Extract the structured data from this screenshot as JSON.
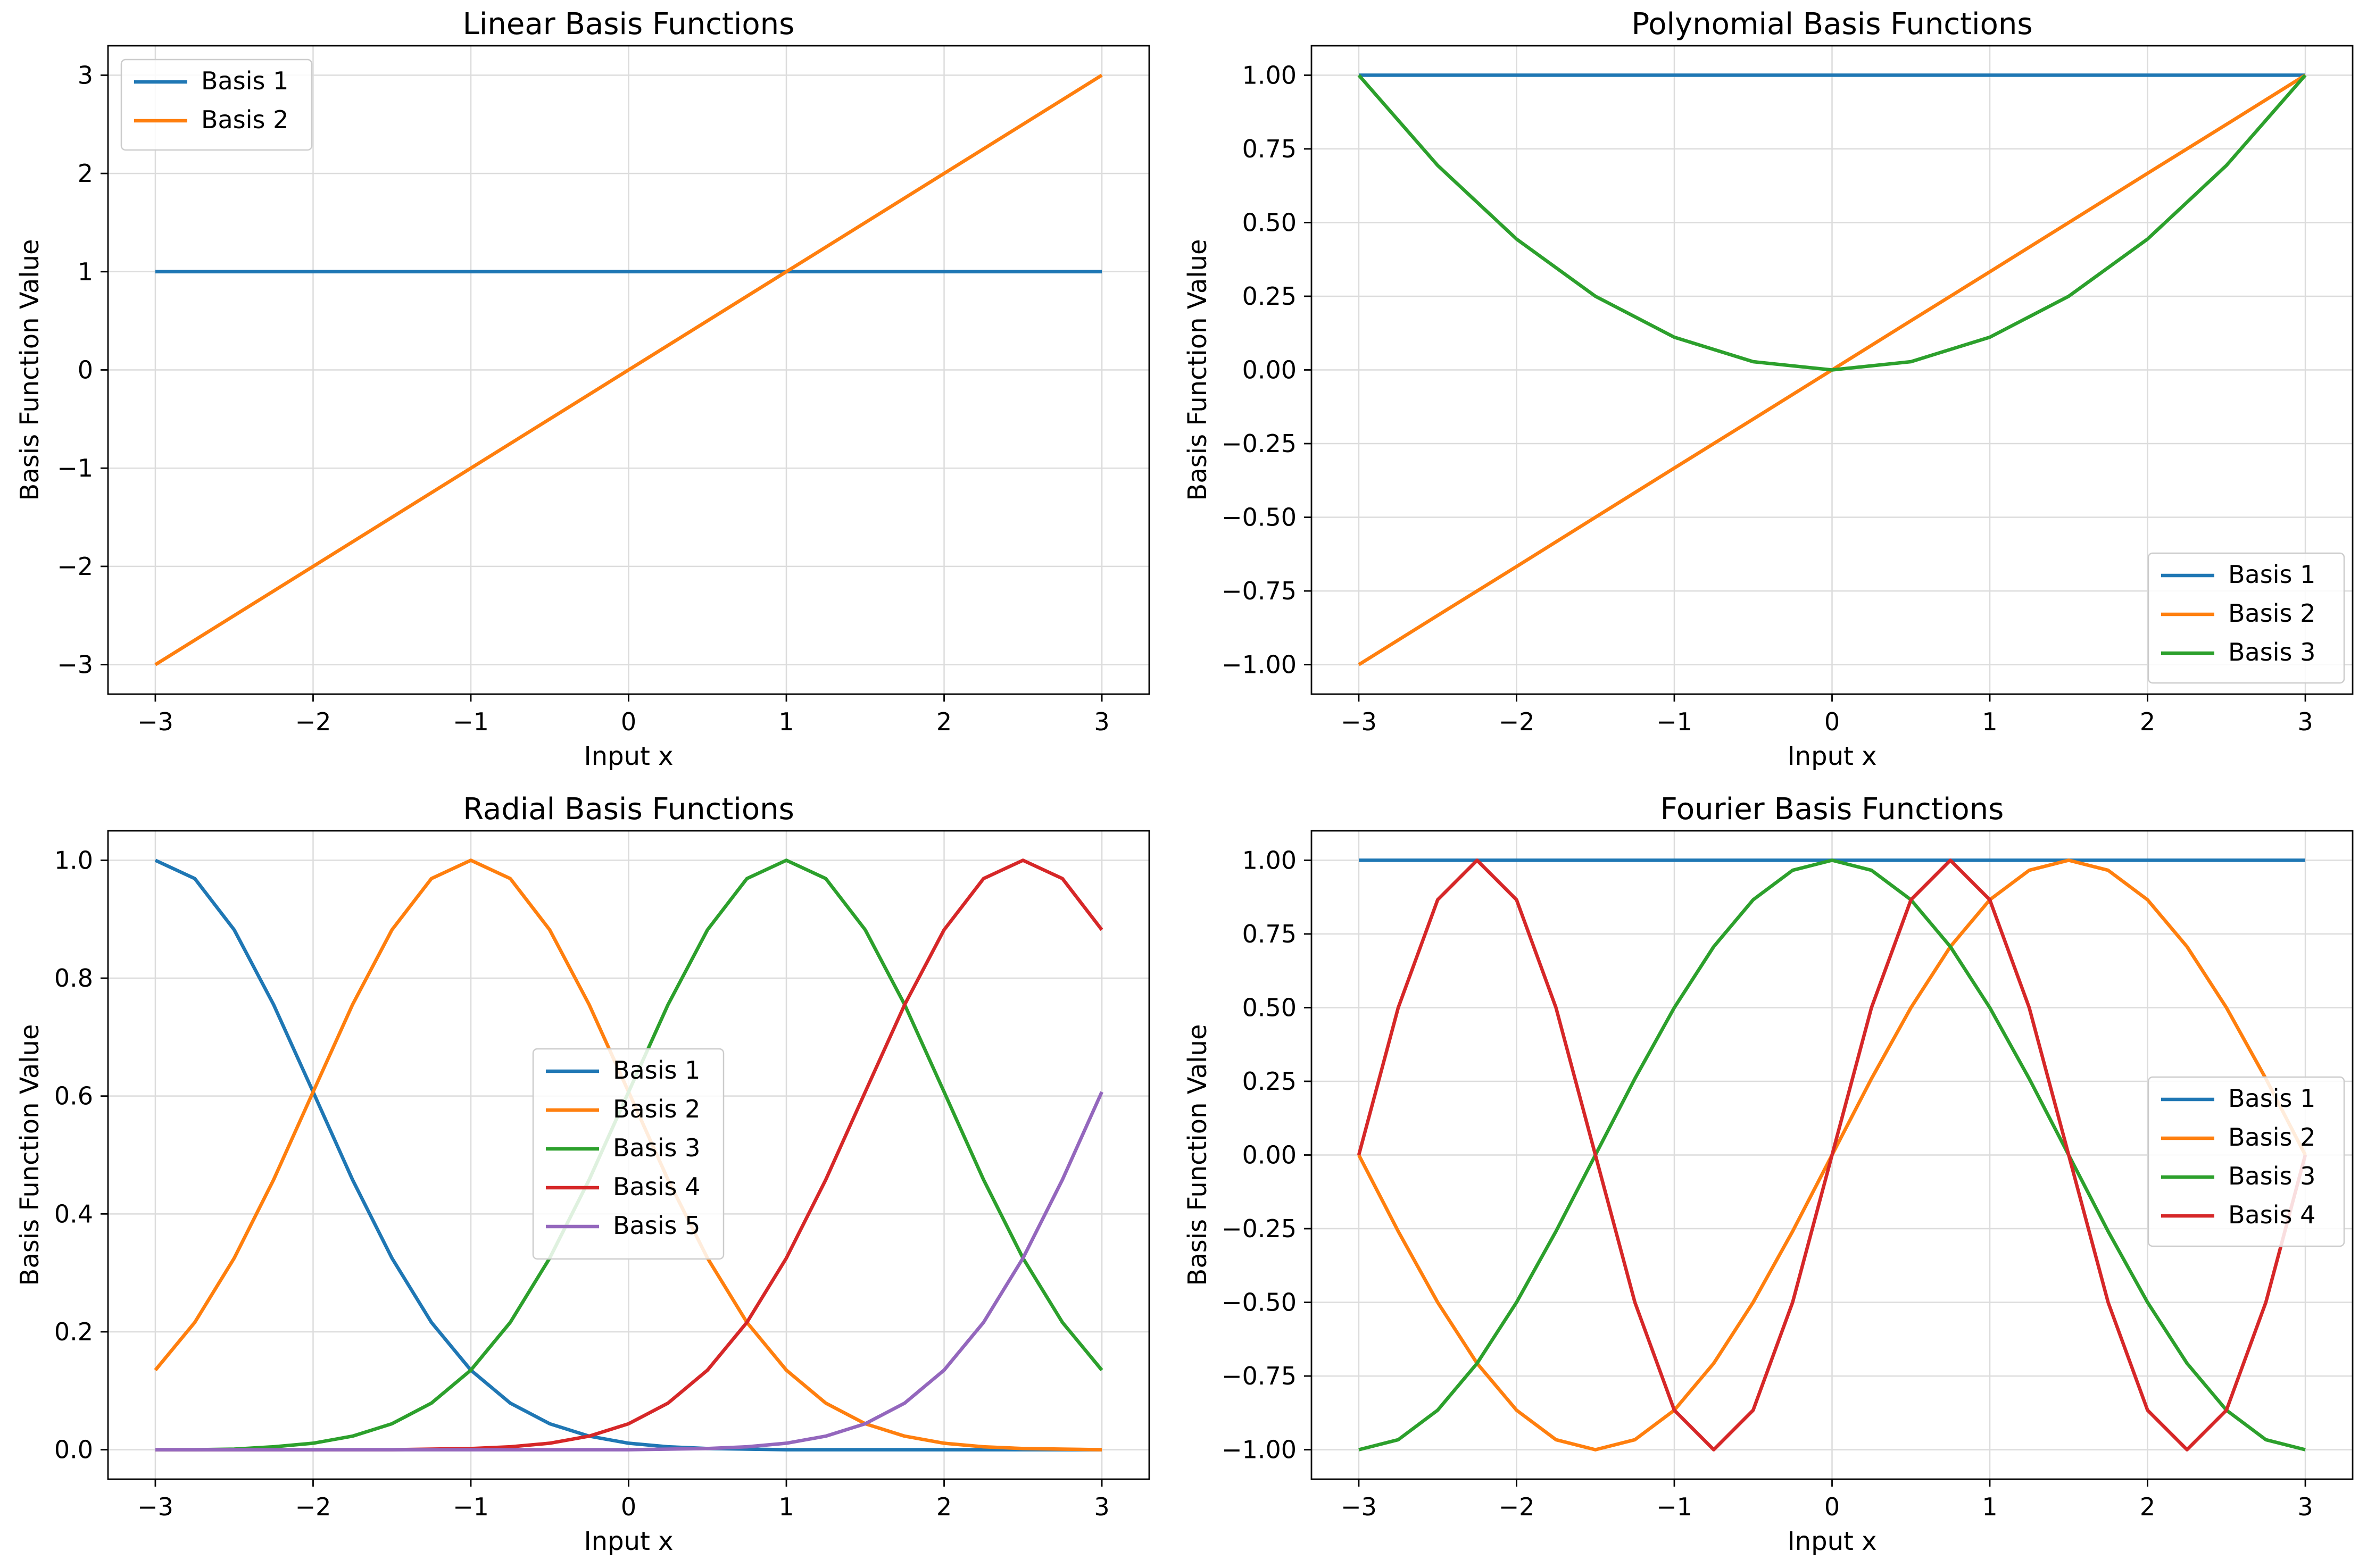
{
  "chart_data": [
    {
      "type": "line",
      "title": "Linear Basis Functions",
      "xlabel": "Input x",
      "ylabel": "Basis Function Value",
      "xlim": [
        -3.3,
        3.3
      ],
      "ylim": [
        -3.3,
        3.3
      ],
      "xticks": [
        -3,
        -2,
        -1,
        0,
        1,
        2,
        3
      ],
      "xtick_labels": [
        "−3",
        "−2",
        "−1",
        "0",
        "1",
        "2",
        "3"
      ],
      "yticks": [
        -3,
        -2,
        -1,
        0,
        1,
        2,
        3
      ],
      "ytick_labels": [
        "−3",
        "−2",
        "−1",
        "0",
        "1",
        "2",
        "3"
      ],
      "grid": true,
      "legend_position": "top-left",
      "x": [
        -3,
        3
      ],
      "series": [
        {
          "name": "Basis 1",
          "color": "#1f77b4",
          "values": [
            1,
            1
          ]
        },
        {
          "name": "Basis 2",
          "color": "#ff7f0e",
          "values": [
            -3,
            3
          ]
        }
      ]
    },
    {
      "type": "line",
      "title": "Polynomial Basis Functions",
      "xlabel": "Input x",
      "ylabel": "Basis Function Value",
      "xlim": [
        -3.3,
        3.3
      ],
      "ylim": [
        -1.1,
        1.1
      ],
      "xticks": [
        -3,
        -2,
        -1,
        0,
        1,
        2,
        3
      ],
      "xtick_labels": [
        "−3",
        "−2",
        "−1",
        "0",
        "1",
        "2",
        "3"
      ],
      "yticks": [
        -1,
        -0.75,
        -0.5,
        -0.25,
        0,
        0.25,
        0.5,
        0.75,
        1
      ],
      "ytick_labels": [
        "−1.00",
        "−0.75",
        "−0.50",
        "−0.25",
        "0.00",
        "0.25",
        "0.50",
        "0.75",
        "1.00"
      ],
      "grid": true,
      "legend_position": "bottom-right",
      "x": [
        -3,
        -2.5,
        -2,
        -1.5,
        -1,
        -0.5,
        0,
        0.5,
        1,
        1.5,
        2,
        2.5,
        3
      ],
      "series": [
        {
          "name": "Basis 1",
          "color": "#1f77b4",
          "values": [
            1,
            1,
            1,
            1,
            1,
            1,
            1,
            1,
            1,
            1,
            1,
            1,
            1
          ]
        },
        {
          "name": "Basis 2",
          "color": "#ff7f0e",
          "values": [
            -1,
            -0.833,
            -0.667,
            -0.5,
            -0.333,
            -0.167,
            0,
            0.167,
            0.333,
            0.5,
            0.667,
            0.833,
            1
          ]
        },
        {
          "name": "Basis 3",
          "color": "#2ca02c",
          "values": [
            1,
            0.694,
            0.444,
            0.25,
            0.111,
            0.028,
            0,
            0.028,
            0.111,
            0.25,
            0.444,
            0.694,
            1
          ]
        }
      ]
    },
    {
      "type": "line",
      "title": "Radial Basis Functions",
      "xlabel": "Input x",
      "ylabel": "Basis Function Value",
      "xlim": [
        -3.3,
        3.3
      ],
      "ylim": [
        -0.05,
        1.05
      ],
      "xticks": [
        -3,
        -2,
        -1,
        0,
        1,
        2,
        3
      ],
      "xtick_labels": [
        "−3",
        "−2",
        "−1",
        "0",
        "1",
        "2",
        "3"
      ],
      "yticks": [
        0,
        0.2,
        0.4,
        0.6,
        0.8,
        1
      ],
      "ytick_labels": [
        "0.0",
        "0.2",
        "0.4",
        "0.6",
        "0.8",
        "1.0"
      ],
      "grid": true,
      "legend_position": "center",
      "x": [
        -3,
        -2.75,
        -2.5,
        -2.25,
        -2,
        -1.75,
        -1.5,
        -1.25,
        -1,
        -0.75,
        -0.5,
        -0.25,
        0,
        0.25,
        0.5,
        0.75,
        1,
        1.25,
        1.5,
        1.75,
        2,
        2.25,
        2.5,
        2.75,
        3
      ],
      "series": [
        {
          "name": "Basis 1",
          "color": "#1f77b4",
          "values": [
            1,
            0.969,
            0.882,
            0.755,
            0.607,
            0.458,
            0.325,
            0.216,
            0.135,
            0.079,
            0.044,
            0.023,
            0.011,
            0.005,
            0.002,
            0.001,
            0,
            0,
            0,
            0,
            0,
            0,
            0,
            0,
            0
          ]
        },
        {
          "name": "Basis 2",
          "color": "#ff7f0e",
          "values": [
            0.135,
            0.216,
            0.325,
            0.458,
            0.607,
            0.755,
            0.882,
            0.969,
            1,
            0.969,
            0.882,
            0.755,
            0.607,
            0.458,
            0.325,
            0.216,
            0.135,
            0.079,
            0.044,
            0.023,
            0.011,
            0.005,
            0.002,
            0.001,
            0
          ]
        },
        {
          "name": "Basis 3",
          "color": "#2ca02c",
          "values": [
            0,
            0,
            0.001,
            0.005,
            0.011,
            0.023,
            0.044,
            0.079,
            0.135,
            0.216,
            0.325,
            0.458,
            0.607,
            0.755,
            0.882,
            0.969,
            1,
            0.969,
            0.882,
            0.755,
            0.607,
            0.458,
            0.325,
            0.216,
            0.135
          ]
        },
        {
          "name": "Basis 4",
          "color": "#d62728",
          "values": [
            0,
            0,
            0,
            0,
            0,
            0,
            0,
            0.001,
            0.002,
            0.005,
            0.011,
            0.023,
            0.044,
            0.079,
            0.135,
            0.216,
            0.325,
            0.458,
            0.607,
            0.755,
            0.882,
            0.969,
            1,
            0.969,
            0.882
          ]
        },
        {
          "name": "Basis 5",
          "color": "#9467bd",
          "values": [
            0,
            0,
            0,
            0,
            0,
            0,
            0,
            0,
            0,
            0,
            0,
            0,
            0,
            0.001,
            0.002,
            0.005,
            0.011,
            0.023,
            0.044,
            0.079,
            0.135,
            0.216,
            0.325,
            0.458,
            0.607
          ]
        }
      ]
    },
    {
      "type": "line",
      "title": "Fourier Basis Functions",
      "xlabel": "Input x",
      "ylabel": "Basis Function Value",
      "xlim": [
        -3.3,
        3.3
      ],
      "ylim": [
        -1.1,
        1.1
      ],
      "xticks": [
        -3,
        -2,
        -1,
        0,
        1,
        2,
        3
      ],
      "xtick_labels": [
        "−3",
        "−2",
        "−1",
        "0",
        "1",
        "2",
        "3"
      ],
      "yticks": [
        -1,
        -0.75,
        -0.5,
        -0.25,
        0,
        0.25,
        0.5,
        0.75,
        1
      ],
      "ytick_labels": [
        "−1.00",
        "−0.75",
        "−0.50",
        "−0.25",
        "0.00",
        "0.25",
        "0.50",
        "0.75",
        "1.00"
      ],
      "grid": true,
      "legend_position": "center-right",
      "x": [
        -3,
        -2.75,
        -2.5,
        -2.25,
        -2,
        -1.75,
        -1.5,
        -1.25,
        -1,
        -0.75,
        -0.5,
        -0.25,
        0,
        0.25,
        0.5,
        0.75,
        1,
        1.25,
        1.5,
        1.75,
        2,
        2.25,
        2.5,
        2.75,
        3
      ],
      "series": [
        {
          "name": "Basis 1",
          "color": "#1f77b4",
          "values": [
            1,
            1,
            1,
            1,
            1,
            1,
            1,
            1,
            1,
            1,
            1,
            1,
            1,
            1,
            1,
            1,
            1,
            1,
            1,
            1,
            1,
            1,
            1,
            1,
            1
          ]
        },
        {
          "name": "Basis 2",
          "color": "#ff7f0e",
          "values": [
            0,
            -0.259,
            -0.5,
            -0.707,
            -0.866,
            -0.966,
            -1,
            -0.966,
            -0.866,
            -0.707,
            -0.5,
            -0.259,
            0,
            0.259,
            0.5,
            0.707,
            0.866,
            0.966,
            1,
            0.966,
            0.866,
            0.707,
            0.5,
            0.259,
            0
          ]
        },
        {
          "name": "Basis 3",
          "color": "#2ca02c",
          "values": [
            -1,
            -0.966,
            -0.866,
            -0.707,
            -0.5,
            -0.259,
            0,
            0.259,
            0.5,
            0.707,
            0.866,
            0.966,
            1,
            0.966,
            0.866,
            0.707,
            0.5,
            0.259,
            0,
            -0.259,
            -0.5,
            -0.707,
            -0.866,
            -0.966,
            -1
          ]
        },
        {
          "name": "Basis 4",
          "color": "#d62728",
          "values": [
            0,
            0.5,
            0.866,
            1,
            0.866,
            0.5,
            0,
            -0.5,
            -0.866,
            -1,
            -0.866,
            -0.5,
            0,
            0.5,
            0.866,
            1,
            0.866,
            0.5,
            0,
            -0.5,
            -0.866,
            -1,
            -0.866,
            -0.5,
            0
          ]
        }
      ]
    }
  ]
}
